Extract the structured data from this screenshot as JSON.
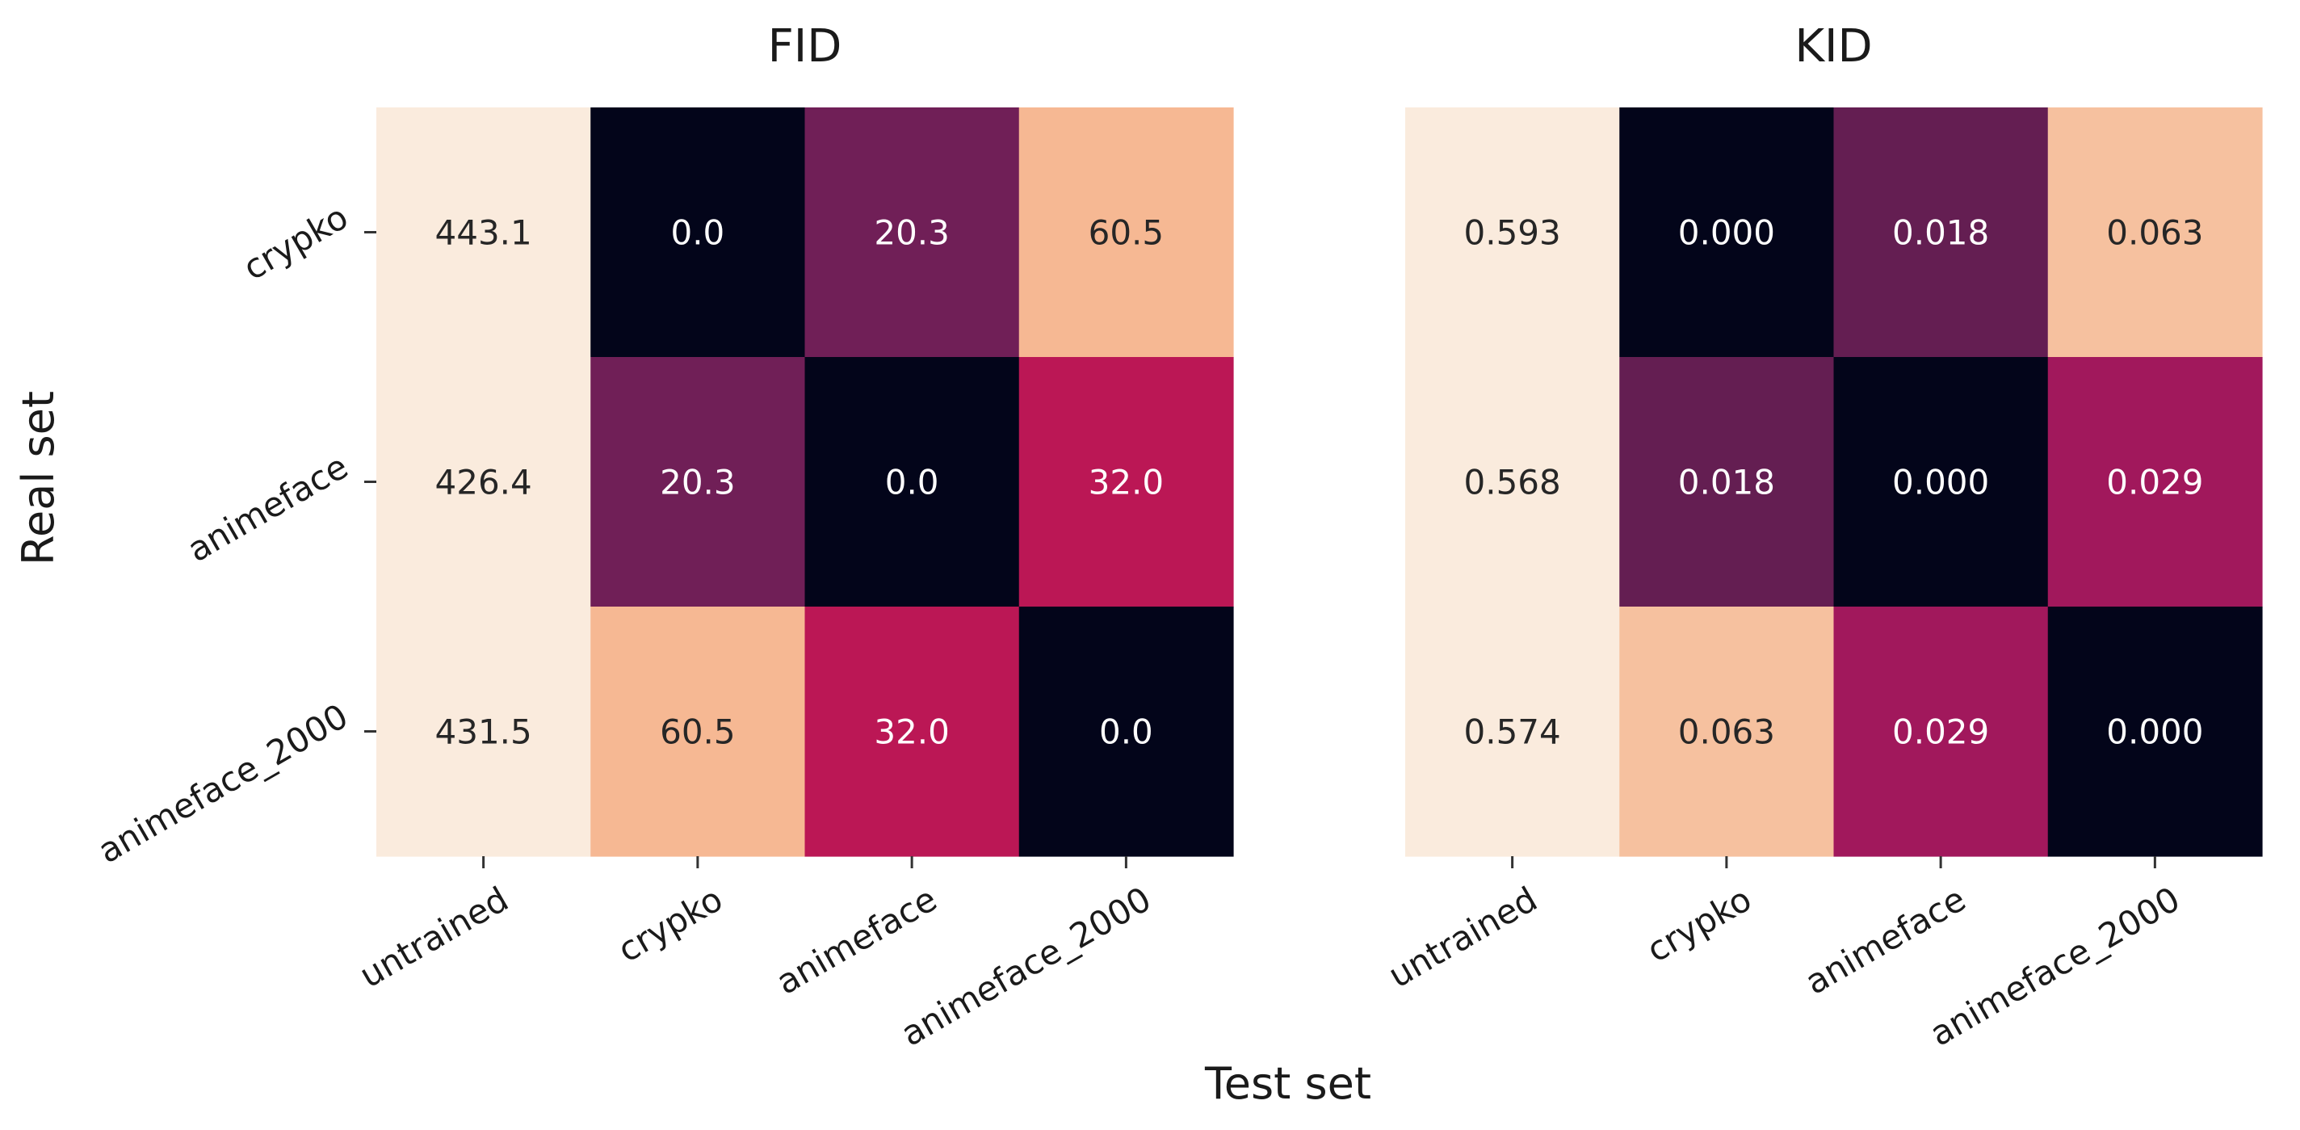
{
  "figure": {
    "xlabel": "Test set",
    "ylabel": "Real set"
  },
  "chart_data": [
    {
      "type": "heatmap",
      "title": "FID",
      "x_categories": [
        "untrained",
        "crypko",
        "animeface",
        "animeface_2000"
      ],
      "y_categories": [
        "crypko",
        "animeface",
        "animeface_2000"
      ],
      "values": [
        [
          443.1,
          0.0,
          20.3,
          60.5
        ],
        [
          426.4,
          20.3,
          0.0,
          32.0
        ],
        [
          431.5,
          60.5,
          32.0,
          0.0
        ]
      ],
      "labels": [
        [
          "443.1",
          "0.0",
          "20.3",
          "60.5"
        ],
        [
          "426.4",
          "20.3",
          "0.0",
          "32.0"
        ],
        [
          "431.5",
          "60.5",
          "32.0",
          "0.0"
        ]
      ],
      "colors": [
        [
          "#faebdd",
          "#03051a",
          "#701f57",
          "#f6b893"
        ],
        [
          "#faebdd",
          "#701f57",
          "#03051a",
          "#bb1755"
        ],
        [
          "#faebdd",
          "#f6b893",
          "#bb1755",
          "#03051a"
        ]
      ],
      "text_colors": [
        [
          "#262626",
          "#ffffff",
          "#ffffff",
          "#262626"
        ],
        [
          "#262626",
          "#ffffff",
          "#ffffff",
          "#ffffff"
        ],
        [
          "#262626",
          "#262626",
          "#ffffff",
          "#ffffff"
        ]
      ],
      "colormap": "rocket",
      "show_y_ticks": true
    },
    {
      "type": "heatmap",
      "title": "KID",
      "x_categories": [
        "untrained",
        "crypko",
        "animeface",
        "animeface_2000"
      ],
      "y_categories": [
        "crypko",
        "animeface",
        "animeface_2000"
      ],
      "values": [
        [
          0.593,
          0.0,
          0.018,
          0.063
        ],
        [
          0.568,
          0.018,
          0.0,
          0.029
        ],
        [
          0.574,
          0.063,
          0.029,
          0.0
        ]
      ],
      "labels": [
        [
          "0.593",
          "0.000",
          "0.018",
          "0.063"
        ],
        [
          "0.568",
          "0.018",
          "0.000",
          "0.029"
        ],
        [
          "0.574",
          "0.063",
          "0.029",
          "0.000"
        ]
      ],
      "colors": [
        [
          "#faebdd",
          "#03051a",
          "#641e52",
          "#f6c19f"
        ],
        [
          "#faebdd",
          "#641e52",
          "#03051a",
          "#a1185c"
        ],
        [
          "#faebdd",
          "#f6c19f",
          "#a1185c",
          "#03051a"
        ]
      ],
      "text_colors": [
        [
          "#262626",
          "#ffffff",
          "#ffffff",
          "#262626"
        ],
        [
          "#262626",
          "#ffffff",
          "#ffffff",
          "#ffffff"
        ],
        [
          "#262626",
          "#262626",
          "#ffffff",
          "#ffffff"
        ]
      ],
      "colormap": "rocket",
      "show_y_ticks": false
    }
  ]
}
